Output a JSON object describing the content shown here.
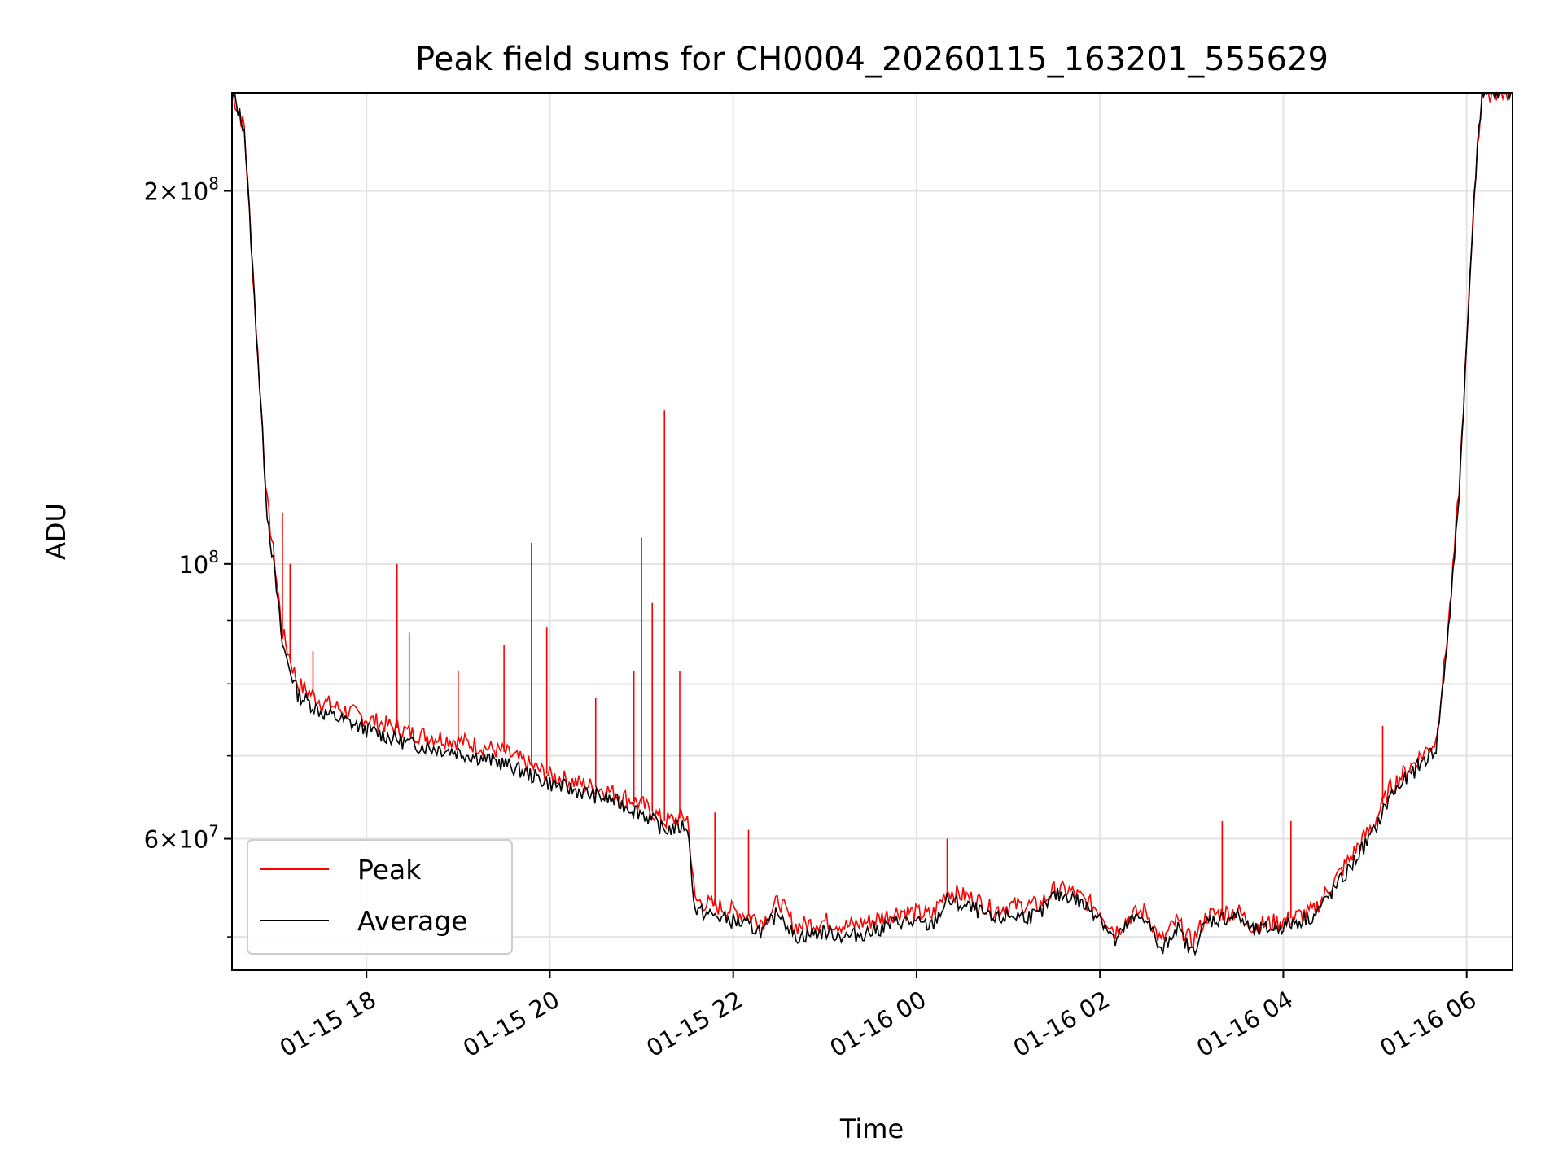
{
  "chart_data": {
    "type": "line",
    "title": "Peak field sums for CH0004_20260115_163201_555629",
    "xlabel": "Time",
    "ylabel": "ADU",
    "yscale": "log",
    "xlim": [
      "2026-01-15 16:32",
      "2026-01-16 06:30"
    ],
    "ylim": [
      47000000,
      240000000
    ],
    "x_ticks": [
      {
        "t": "2026-01-15 18:00",
        "label": "01-15 18"
      },
      {
        "t": "2026-01-15 20:00",
        "label": "01-15 20"
      },
      {
        "t": "2026-01-15 22:00",
        "label": "01-15 22"
      },
      {
        "t": "2026-01-16 00:00",
        "label": "01-16 00"
      },
      {
        "t": "2026-01-16 02:00",
        "label": "01-16 02"
      },
      {
        "t": "2026-01-16 04:00",
        "label": "01-16 04"
      },
      {
        "t": "2026-01-16 06:00",
        "label": "01-16 06"
      }
    ],
    "y_major_ticks": [
      {
        "v": 60000000,
        "label_mantissa": "6",
        "label_base": "10",
        "label_exp": "7"
      },
      {
        "v": 100000000,
        "label_mantissa": "",
        "label_base": "10",
        "label_exp": "8"
      },
      {
        "v": 200000000,
        "label_mantissa": "2",
        "label_base": "10",
        "label_exp": "8"
      }
    ],
    "y_minor_ticks": [
      50000000,
      70000000,
      80000000,
      90000000
    ],
    "grid": true,
    "legend_position": "lower-left",
    "series": [
      {
        "name": "Peak",
        "color": "#ff0000",
        "points": [
          [
            "2026-01-15 16:32",
            240000000
          ],
          [
            "2026-01-15 16:40",
            225000000
          ],
          [
            "2026-01-15 16:50",
            140000000
          ],
          [
            "2026-01-15 16:55",
            112000000
          ],
          [
            "2026-01-15 17:00",
            100000000
          ],
          [
            "2026-01-15 17:05",
            88000000
          ],
          [
            "2026-01-15 17:15",
            80000000
          ],
          [
            "2026-01-15 17:30",
            77500000
          ],
          [
            "2026-01-15 18:00",
            75000000
          ],
          [
            "2026-01-15 18:30",
            73000000
          ],
          [
            "2026-01-15 19:00",
            72000000
          ],
          [
            "2026-01-15 19:30",
            70500000
          ],
          [
            "2026-01-15 20:00",
            67500000
          ],
          [
            "2026-01-15 20:20",
            66500000
          ],
          [
            "2026-01-15 20:40",
            65500000
          ],
          [
            "2026-01-15 21:00",
            64000000
          ],
          [
            "2026-01-15 21:15",
            62000000
          ],
          [
            "2026-01-15 21:30",
            62500000
          ],
          [
            "2026-01-15 21:35",
            53500000
          ],
          [
            "2026-01-15 22:00",
            52500000
          ],
          [
            "2026-01-15 22:20",
            51500000
          ],
          [
            "2026-01-15 22:30",
            53500000
          ],
          [
            "2026-01-15 22:40",
            51000000
          ],
          [
            "2026-01-15 23:00",
            51500000
          ],
          [
            "2026-01-15 23:15",
            51000000
          ],
          [
            "2026-01-15 23:30",
            51500000
          ],
          [
            "2026-01-15 23:50",
            52500000
          ],
          [
            "2026-01-16 00:10",
            52000000
          ],
          [
            "2026-01-16 00:20",
            54500000
          ],
          [
            "2026-01-16 00:40",
            53500000
          ],
          [
            "2026-01-16 00:50",
            52500000
          ],
          [
            "2026-01-16 01:00",
            53000000
          ],
          [
            "2026-01-16 01:20",
            53000000
          ],
          [
            "2026-01-16 01:30",
            54500000
          ],
          [
            "2026-01-16 01:40",
            54500000
          ],
          [
            "2026-01-16 02:00",
            52500000
          ],
          [
            "2026-01-16 02:10",
            50500000
          ],
          [
            "2026-01-16 02:20",
            52000000
          ],
          [
            "2026-01-16 02:30",
            52500000
          ],
          [
            "2026-01-16 02:40",
            49500000
          ],
          [
            "2026-01-16 02:50",
            51500000
          ],
          [
            "2026-01-16 03:00",
            49500000
          ],
          [
            "2026-01-16 03:10",
            52000000
          ],
          [
            "2026-01-16 03:30",
            52500000
          ],
          [
            "2026-01-16 03:40",
            51000000
          ],
          [
            "2026-01-16 04:00",
            51500000
          ],
          [
            "2026-01-16 04:20",
            52500000
          ],
          [
            "2026-01-16 04:40",
            57000000
          ],
          [
            "2026-01-16 05:00",
            62000000
          ],
          [
            "2026-01-16 05:10",
            66000000
          ],
          [
            "2026-01-16 05:30",
            70000000
          ],
          [
            "2026-01-16 05:40",
            72000000
          ],
          [
            "2026-01-16 05:45",
            82000000
          ],
          [
            "2026-01-16 05:50",
            95000000
          ],
          [
            "2026-01-16 05:55",
            115000000
          ],
          [
            "2026-01-16 06:00",
            150000000
          ],
          [
            "2026-01-16 06:05",
            200000000
          ],
          [
            "2026-01-16 06:10",
            240000000
          ],
          [
            "2026-01-16 06:30",
            240000000
          ]
        ],
        "spikes": [
          [
            "2026-01-15 17:05",
            110000000
          ],
          [
            "2026-01-15 17:10",
            100000000
          ],
          [
            "2026-01-15 17:25",
            85000000
          ],
          [
            "2026-01-15 18:20",
            100000000
          ],
          [
            "2026-01-15 18:28",
            88000000
          ],
          [
            "2026-01-15 19:00",
            82000000
          ],
          [
            "2026-01-15 19:30",
            86000000
          ],
          [
            "2026-01-15 19:48",
            104000000
          ],
          [
            "2026-01-15 19:58",
            89000000
          ],
          [
            "2026-01-15 20:30",
            78000000
          ],
          [
            "2026-01-15 20:55",
            82000000
          ],
          [
            "2026-01-15 21:00",
            105000000
          ],
          [
            "2026-01-15 21:07",
            93000000
          ],
          [
            "2026-01-15 21:15",
            133000000
          ],
          [
            "2026-01-15 21:25",
            82000000
          ],
          [
            "2026-01-15 21:48",
            63000000
          ],
          [
            "2026-01-15 22:10",
            61000000
          ],
          [
            "2026-01-16 00:20",
            60000000
          ],
          [
            "2026-01-16 03:20",
            62000000
          ],
          [
            "2026-01-16 04:05",
            62000000
          ],
          [
            "2026-01-16 05:05",
            74000000
          ]
        ]
      },
      {
        "name": "Average",
        "color": "#000000",
        "points": [
          [
            "2026-01-15 16:32",
            240000000
          ],
          [
            "2026-01-15 16:40",
            225000000
          ],
          [
            "2026-01-15 16:50",
            140000000
          ],
          [
            "2026-01-15 16:55",
            110000000
          ],
          [
            "2026-01-15 17:00",
            98000000
          ],
          [
            "2026-01-15 17:05",
            86000000
          ],
          [
            "2026-01-15 17:15",
            78500000
          ],
          [
            "2026-01-15 17:30",
            76000000
          ],
          [
            "2026-01-15 18:00",
            73500000
          ],
          [
            "2026-01-15 18:30",
            71500000
          ],
          [
            "2026-01-15 19:00",
            70500000
          ],
          [
            "2026-01-15 19:30",
            69000000
          ],
          [
            "2026-01-15 20:00",
            66500000
          ],
          [
            "2026-01-15 20:20",
            65500000
          ],
          [
            "2026-01-15 20:40",
            64500000
          ],
          [
            "2026-01-15 21:00",
            63000000
          ],
          [
            "2026-01-15 21:15",
            61000000
          ],
          [
            "2026-01-15 21:30",
            61500000
          ],
          [
            "2026-01-15 21:35",
            52500000
          ],
          [
            "2026-01-15 22:00",
            51500000
          ],
          [
            "2026-01-15 22:20",
            50500000
          ],
          [
            "2026-01-15 22:30",
            52500000
          ],
          [
            "2026-01-15 22:40",
            50000000
          ],
          [
            "2026-01-15 23:00",
            50500000
          ],
          [
            "2026-01-15 23:15",
            50000000
          ],
          [
            "2026-01-15 23:30",
            50500000
          ],
          [
            "2026-01-15 23:50",
            51500000
          ],
          [
            "2026-01-16 00:10",
            51000000
          ],
          [
            "2026-01-16 00:20",
            53500000
          ],
          [
            "2026-01-16 00:40",
            52500000
          ],
          [
            "2026-01-16 00:50",
            51500000
          ],
          [
            "2026-01-16 01:00",
            52000000
          ],
          [
            "2026-01-16 01:20",
            52000000
          ],
          [
            "2026-01-16 01:30",
            54000000
          ],
          [
            "2026-01-16 01:40",
            54000000
          ],
          [
            "2026-01-16 02:00",
            52000000
          ],
          [
            "2026-01-16 02:10",
            49500000
          ],
          [
            "2026-01-16 02:20",
            51500000
          ],
          [
            "2026-01-16 02:30",
            52000000
          ],
          [
            "2026-01-16 02:40",
            48500000
          ],
          [
            "2026-01-16 02:50",
            51000000
          ],
          [
            "2026-01-16 03:00",
            48500000
          ],
          [
            "2026-01-16 03:10",
            51500000
          ],
          [
            "2026-01-16 03:30",
            52000000
          ],
          [
            "2026-01-16 03:40",
            50500000
          ],
          [
            "2026-01-16 04:00",
            51000000
          ],
          [
            "2026-01-16 04:20",
            52000000
          ],
          [
            "2026-01-16 04:40",
            56000000
          ],
          [
            "2026-01-16 05:00",
            61000000
          ],
          [
            "2026-01-16 05:10",
            65000000
          ],
          [
            "2026-01-16 05:30",
            69000000
          ],
          [
            "2026-01-16 05:40",
            71000000
          ],
          [
            "2026-01-16 05:45",
            81000000
          ],
          [
            "2026-01-16 05:50",
            94000000
          ],
          [
            "2026-01-16 05:55",
            114000000
          ],
          [
            "2026-01-16 06:00",
            150000000
          ],
          [
            "2026-01-16 06:05",
            200000000
          ],
          [
            "2026-01-16 06:10",
            240000000
          ],
          [
            "2026-01-16 06:30",
            240000000
          ]
        ]
      }
    ]
  }
}
